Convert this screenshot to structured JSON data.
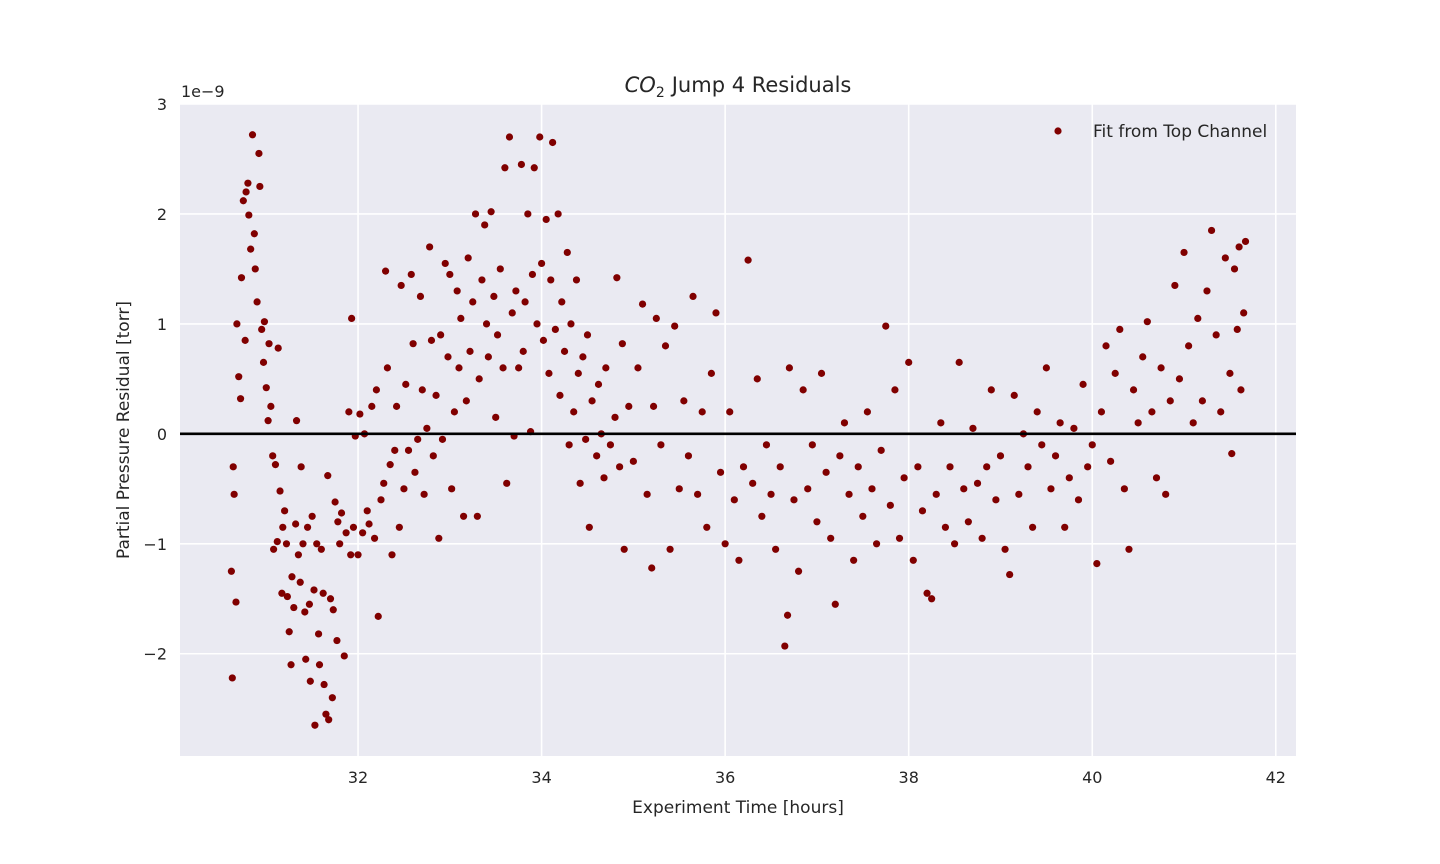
{
  "chart_data": {
    "type": "scatter",
    "title": {
      "formula": "CO",
      "subscript": "2",
      "text": "Jump 4 Residuals"
    },
    "x_label": "Experiment Time [hours]",
    "y_label": "Partial Pressure Residual [torr]",
    "y_offset_label": "1e−9",
    "xlim": [
      30.06,
      42.22
    ],
    "ylim": [
      -2.93,
      3
    ],
    "xticks": [
      32,
      34,
      36,
      38,
      40,
      42
    ],
    "yticks": [
      {
        "value": -2,
        "label": "−2"
      },
      {
        "value": -1,
        "label": "−1"
      },
      0,
      1,
      2,
      3
    ],
    "grid": true,
    "hline": 0,
    "legend": "upper right",
    "x": [
      30.62,
      30.63,
      30.64,
      30.65,
      30.67,
      30.68,
      30.7,
      30.72,
      30.73,
      30.75,
      30.77,
      30.78,
      30.8,
      30.81,
      30.83,
      30.85,
      30.87,
      30.88,
      30.9,
      30.92,
      30.93,
      30.95,
      30.97,
      30.98,
      31.0,
      31.02,
      31.03,
      31.05,
      31.07,
      31.08,
      31.1,
      31.12,
      31.13,
      31.15,
      31.17,
      31.18,
      31.2,
      31.22,
      31.23,
      31.25,
      31.27,
      31.28,
      31.3,
      31.32,
      31.33,
      31.35,
      31.37,
      31.38,
      31.4,
      31.42,
      31.43,
      31.45,
      31.47,
      31.48,
      31.5,
      31.52,
      31.53,
      31.55,
      31.57,
      31.58,
      31.6,
      31.62,
      31.63,
      31.65,
      31.67,
      31.68,
      31.7,
      31.72,
      31.73,
      31.75,
      31.77,
      31.78,
      31.8,
      31.82,
      31.85,
      31.87,
      31.9,
      31.92,
      31.93,
      31.95,
      31.97,
      32.0,
      32.02,
      32.05,
      32.07,
      32.1,
      32.12,
      32.15,
      32.18,
      32.2,
      32.22,
      32.25,
      32.28,
      32.3,
      32.32,
      32.35,
      32.37,
      32.4,
      32.42,
      32.45,
      32.47,
      32.5,
      32.52,
      32.55,
      32.58,
      32.6,
      32.62,
      32.65,
      32.68,
      32.7,
      32.72,
      32.75,
      32.78,
      32.8,
      32.82,
      32.85,
      32.88,
      32.9,
      32.92,
      32.95,
      32.98,
      33.0,
      33.02,
      33.05,
      33.08,
      33.1,
      33.12,
      33.15,
      33.18,
      33.2,
      33.22,
      33.25,
      33.28,
      33.3,
      33.32,
      33.35,
      33.38,
      33.4,
      33.42,
      33.45,
      33.48,
      33.5,
      33.52,
      33.55,
      33.58,
      33.6,
      33.62,
      33.65,
      33.68,
      33.7,
      33.72,
      33.75,
      33.78,
      33.8,
      33.82,
      33.85,
      33.88,
      33.9,
      33.92,
      33.95,
      33.98,
      34.0,
      34.02,
      34.05,
      34.08,
      34.1,
      34.12,
      34.15,
      34.18,
      34.2,
      34.22,
      34.25,
      34.28,
      34.3,
      34.32,
      34.35,
      34.38,
      34.4,
      34.42,
      34.45,
      34.48,
      34.5,
      34.52,
      34.55,
      34.6,
      34.62,
      34.65,
      34.68,
      34.7,
      34.75,
      34.8,
      34.82,
      34.85,
      34.88,
      34.9,
      34.95,
      35.0,
      35.05,
      35.1,
      35.15,
      35.2,
      35.22,
      35.25,
      35.3,
      35.35,
      35.4,
      35.45,
      35.5,
      35.55,
      35.6,
      35.65,
      35.7,
      35.75,
      35.8,
      35.85,
      35.9,
      35.95,
      36.0,
      36.05,
      36.1,
      36.15,
      36.2,
      36.25,
      36.3,
      36.35,
      36.4,
      36.45,
      36.5,
      36.55,
      36.6,
      36.65,
      36.68,
      36.7,
      36.75,
      36.8,
      36.85,
      36.9,
      36.95,
      37.0,
      37.05,
      37.1,
      37.15,
      37.2,
      37.25,
      37.3,
      37.35,
      37.4,
      37.45,
      37.5,
      37.55,
      37.6,
      37.65,
      37.7,
      37.75,
      37.8,
      37.85,
      37.9,
      37.95,
      38.0,
      38.05,
      38.1,
      38.15,
      38.2,
      38.25,
      38.3,
      38.35,
      38.4,
      38.45,
      38.5,
      38.55,
      38.6,
      38.65,
      38.7,
      38.75,
      38.8,
      38.85,
      38.9,
      38.95,
      39.0,
      39.05,
      39.1,
      39.15,
      39.2,
      39.25,
      39.3,
      39.35,
      39.4,
      39.45,
      39.5,
      39.55,
      39.6,
      39.65,
      39.7,
      39.75,
      39.8,
      39.85,
      39.9,
      39.95,
      40.0,
      40.05,
      40.1,
      40.15,
      40.2,
      40.25,
      40.3,
      40.35,
      40.4,
      40.45,
      40.5,
      40.55,
      40.6,
      40.65,
      40.7,
      40.75,
      40.8,
      40.85,
      40.9,
      40.95,
      41.0,
      41.05,
      41.1,
      41.15,
      41.2,
      41.25,
      41.3,
      41.35,
      41.4,
      41.45,
      41.5,
      41.52,
      41.55,
      41.58,
      41.6,
      41.62,
      41.65,
      41.67
    ],
    "series": [
      {
        "name": "Fit from Top Channel",
        "color": "#800000",
        "values": [
          -1.25,
          -2.22,
          -0.3,
          -0.55,
          -1.53,
          1.0,
          0.52,
          0.32,
          1.42,
          2.12,
          0.85,
          2.2,
          2.28,
          1.99,
          1.68,
          2.72,
          1.82,
          1.5,
          1.2,
          2.55,
          2.25,
          0.95,
          0.65,
          1.02,
          0.42,
          0.12,
          0.82,
          0.25,
          -0.2,
          -1.05,
          -0.28,
          -0.98,
          0.78,
          -0.52,
          -1.45,
          -0.85,
          -0.7,
          -1.0,
          -1.48,
          -1.8,
          -2.1,
          -1.3,
          -1.58,
          -0.82,
          0.12,
          -1.1,
          -1.35,
          -0.3,
          -1.0,
          -1.62,
          -2.05,
          -0.85,
          -1.55,
          -2.25,
          -0.75,
          -1.42,
          -2.65,
          -1.0,
          -1.82,
          -2.1,
          -1.05,
          -1.45,
          -2.28,
          -2.55,
          -0.38,
          -2.6,
          -1.5,
          -2.4,
          -1.6,
          -0.62,
          -1.88,
          -0.8,
          -1.0,
          -0.72,
          -2.02,
          -0.9,
          0.2,
          -1.1,
          1.05,
          -0.85,
          -0.02,
          -1.1,
          0.18,
          -0.9,
          0.0,
          -0.7,
          -0.82,
          0.25,
          -0.95,
          0.4,
          -1.66,
          -0.6,
          -0.45,
          1.48,
          0.6,
          -0.28,
          -1.1,
          -0.15,
          0.25,
          -0.85,
          1.35,
          -0.5,
          0.45,
          -0.15,
          1.45,
          0.82,
          -0.35,
          -0.05,
          1.25,
          0.4,
          -0.55,
          0.05,
          1.7,
          0.85,
          -0.2,
          0.35,
          -0.95,
          0.9,
          -0.05,
          1.55,
          0.7,
          1.45,
          -0.5,
          0.2,
          1.3,
          0.6,
          1.05,
          -0.75,
          0.3,
          1.6,
          0.75,
          1.2,
          2.0,
          -0.75,
          0.5,
          1.4,
          1.9,
          1.0,
          0.7,
          2.02,
          1.25,
          0.15,
          0.9,
          1.5,
          0.6,
          2.42,
          -0.45,
          2.7,
          1.1,
          -0.02,
          1.3,
          0.6,
          2.45,
          0.75,
          1.2,
          2.0,
          0.02,
          1.45,
          2.42,
          1.0,
          2.7,
          1.55,
          0.85,
          1.95,
          0.55,
          1.4,
          2.65,
          0.95,
          2.0,
          0.35,
          1.2,
          0.75,
          1.65,
          -0.1,
          1.0,
          0.2,
          1.4,
          0.55,
          -0.45,
          0.7,
          -0.05,
          0.9,
          -0.85,
          0.3,
          -0.2,
          0.45,
          0.0,
          -0.4,
          0.6,
          -0.1,
          0.15,
          1.42,
          -0.3,
          0.82,
          -1.05,
          0.25,
          -0.25,
          0.6,
          1.18,
          -0.55,
          -1.22,
          0.25,
          1.05,
          -0.1,
          0.8,
          -1.05,
          0.98,
          -0.5,
          0.3,
          -0.2,
          1.25,
          -0.55,
          0.2,
          -0.85,
          0.55,
          1.1,
          -0.35,
          -1.0,
          0.2,
          -0.6,
          -1.15,
          -0.3,
          1.58,
          -0.45,
          0.5,
          -0.75,
          -0.1,
          -0.55,
          -1.05,
          -0.3,
          -1.93,
          -1.65,
          0.6,
          -0.6,
          -1.25,
          0.4,
          -0.5,
          -0.1,
          -0.8,
          0.55,
          -0.35,
          -0.95,
          -1.55,
          -0.2,
          0.1,
          -0.55,
          -1.15,
          -0.3,
          -0.75,
          0.2,
          -0.5,
          -1.0,
          -0.15,
          0.98,
          -0.65,
          0.4,
          -0.95,
          -0.4,
          0.65,
          -1.15,
          -0.3,
          -0.7,
          -1.45,
          -1.5,
          -0.55,
          0.1,
          -0.85,
          -0.3,
          -1.0,
          0.65,
          -0.5,
          -0.8,
          0.05,
          -0.45,
          -0.95,
          -0.3,
          0.4,
          -0.6,
          -0.2,
          -1.05,
          -1.28,
          0.35,
          -0.55,
          0.0,
          -0.3,
          -0.85,
          0.2,
          -0.1,
          0.6,
          -0.5,
          -0.2,
          0.1,
          -0.85,
          -0.4,
          0.05,
          -0.6,
          0.45,
          -0.3,
          -0.1,
          -1.18,
          0.2,
          0.8,
          -0.25,
          0.55,
          0.95,
          -0.5,
          -1.05,
          0.4,
          0.1,
          0.7,
          1.02,
          0.2,
          -0.4,
          0.6,
          -0.55,
          0.3,
          1.35,
          0.5,
          1.65,
          0.8,
          0.1,
          1.05,
          0.3,
          1.3,
          1.85,
          0.9,
          0.2,
          1.6,
          0.55,
          -0.18,
          1.5,
          0.95,
          1.7,
          0.4,
          1.1,
          1.75
        ]
      }
    ]
  }
}
